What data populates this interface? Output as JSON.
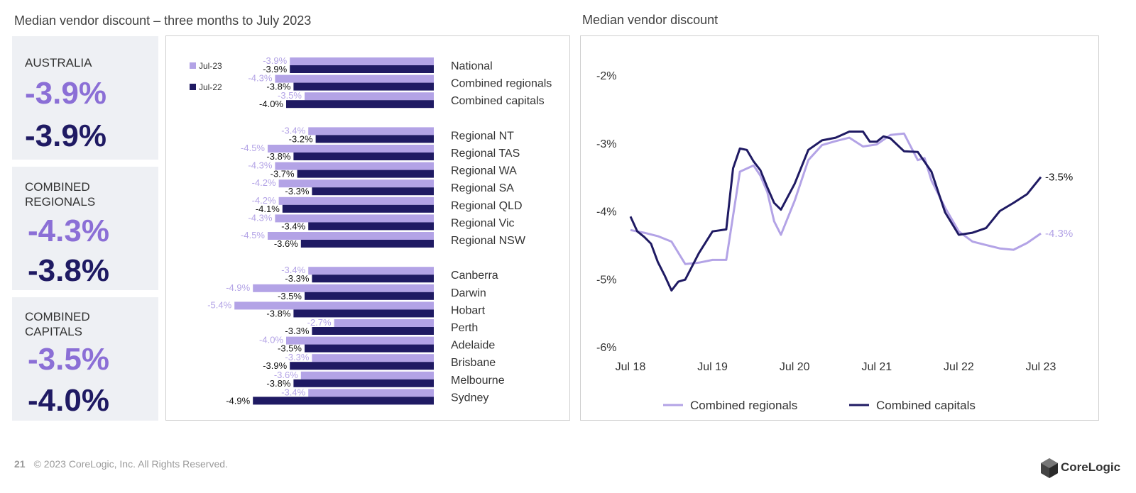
{
  "left_title": "Median vendor discount – three months to July 2023",
  "right_title": "Median vendor discount",
  "cards": [
    {
      "label": "AUSTRALIA",
      "value_jul23": "-3.9%",
      "value_jul22": "-3.9%"
    },
    {
      "label": "COMBINED REGIONALS",
      "value_jul23": "-4.3%",
      "value_jul22": "-3.8%"
    },
    {
      "label": "COMBINED CAPITALS",
      "value_jul23": "-3.5%",
      "value_jul22": "-4.0%"
    }
  ],
  "footer": {
    "page": "21",
    "copyright": "© 2023 CoreLogic, Inc. All Rights Reserved."
  },
  "logo_text": "CoreLogic",
  "colors": {
    "jul23": "#b3a3e6",
    "jul22": "#1f1a63",
    "regionals_line": "#b3a3e6",
    "capitals_line": "#1f1a63"
  },
  "chart_data": [
    {
      "type": "bar",
      "orientation": "horizontal",
      "legend": [
        "Jul-23",
        "Jul-22"
      ],
      "legend_position": "top-left",
      "groups": [
        [
          "National",
          "Combined regionals",
          "Combined capitals"
        ],
        [
          "Regional NT",
          "Regional TAS",
          "Regional WA",
          "Regional SA",
          "Regional QLD",
          "Regional Vic",
          "Regional NSW"
        ],
        [
          "Canberra",
          "Darwin",
          "Hobart",
          "Perth",
          "Adelaide",
          "Brisbane",
          "Melbourne",
          "Sydney"
        ]
      ],
      "categories": [
        "National",
        "Combined regionals",
        "Combined capitals",
        "Regional NT",
        "Regional TAS",
        "Regional WA",
        "Regional SA",
        "Regional QLD",
        "Regional Vic",
        "Regional NSW",
        "Canberra",
        "Darwin",
        "Hobart",
        "Perth",
        "Adelaide",
        "Brisbane",
        "Melbourne",
        "Sydney"
      ],
      "series": [
        {
          "name": "Jul-23",
          "values": [
            -3.9,
            -4.3,
            -3.5,
            -3.4,
            -4.5,
            -4.3,
            -4.2,
            -4.2,
            -4.3,
            -4.5,
            -3.4,
            -4.9,
            -5.4,
            -2.7,
            -4.0,
            -3.3,
            -3.6,
            -3.4
          ]
        },
        {
          "name": "Jul-22",
          "values": [
            -3.9,
            -3.8,
            -4.0,
            -3.2,
            -3.8,
            -3.7,
            -3.3,
            -4.1,
            -3.4,
            -3.6,
            -3.3,
            -3.5,
            -3.8,
            -3.3,
            -3.5,
            -3.9,
            -3.8,
            -4.9
          ]
        }
      ]
    },
    {
      "type": "line",
      "title": "Median vendor discount",
      "x_ticks": [
        "Jul 18",
        "Jul 19",
        "Jul 20",
        "Jul 21",
        "Jul 22",
        "Jul 23"
      ],
      "y_ticks": [
        "-2%",
        "-3%",
        "-4%",
        "-5%",
        "-6%"
      ],
      "ylim": [
        -6,
        -2
      ],
      "xlim": [
        0,
        60
      ],
      "legend_position": "bottom",
      "series": [
        {
          "name": "Combined regionals",
          "end_label": "-4.3%",
          "x": [
            0,
            2,
            4,
            6,
            8,
            10,
            12,
            14,
            16,
            18,
            19,
            20,
            21,
            22,
            24,
            26,
            28,
            30,
            32,
            34,
            36,
            38,
            40,
            42,
            43,
            44,
            46,
            48,
            50,
            52,
            54,
            56,
            58,
            60
          ],
          "y": [
            -4.28,
            -4.32,
            -4.37,
            -4.45,
            -4.78,
            -4.76,
            -4.72,
            -4.72,
            -3.42,
            -3.33,
            -3.48,
            -3.72,
            -4.15,
            -4.35,
            -3.85,
            -3.25,
            -3.03,
            -2.97,
            -2.92,
            -3.05,
            -3.02,
            -2.88,
            -2.86,
            -3.25,
            -3.22,
            -3.55,
            -3.95,
            -4.3,
            -4.45,
            -4.5,
            -4.55,
            -4.57,
            -4.47,
            -4.33
          ]
        },
        {
          "name": "Combined capitals",
          "end_label": "-3.5%",
          "x": [
            0,
            1,
            2,
            3,
            4,
            5,
            6,
            7,
            8,
            10,
            12,
            14,
            15,
            16,
            17,
            18,
            19,
            20,
            21,
            22,
            24,
            26,
            28,
            30,
            32,
            34,
            35,
            36,
            37,
            38,
            40,
            42,
            44,
            46,
            48,
            50,
            52,
            54,
            56,
            58,
            60
          ],
          "y": [
            -4.08,
            -4.3,
            -4.38,
            -4.48,
            -4.75,
            -4.95,
            -5.17,
            -5.04,
            -5.01,
            -4.62,
            -4.3,
            -4.27,
            -3.37,
            -3.08,
            -3.1,
            -3.27,
            -3.4,
            -3.65,
            -3.88,
            -3.98,
            -3.6,
            -3.1,
            -2.96,
            -2.92,
            -2.83,
            -2.83,
            -2.98,
            -2.98,
            -2.9,
            -2.93,
            -3.12,
            -3.13,
            -3.42,
            -4.02,
            -4.35,
            -4.32,
            -4.25,
            -4.0,
            -3.88,
            -3.75,
            -3.5
          ]
        }
      ]
    }
  ]
}
